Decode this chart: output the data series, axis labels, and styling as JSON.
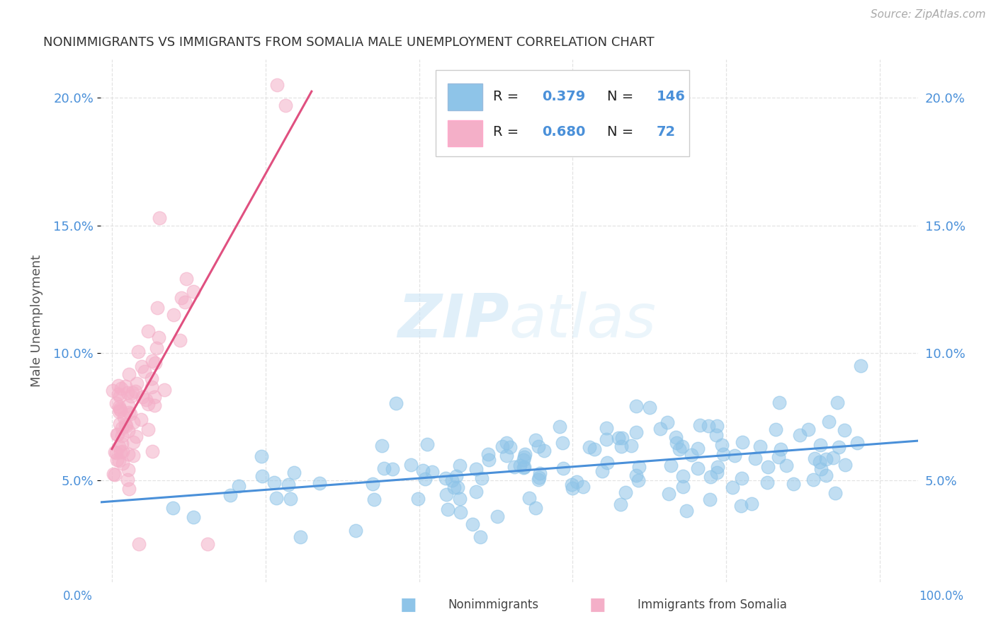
{
  "title": "NONIMMIGRANTS VS IMMIGRANTS FROM SOMALIA MALE UNEMPLOYMENT CORRELATION CHART",
  "source": "Source: ZipAtlas.com",
  "ylabel": "Male Unemployment",
  "blue_color": "#8ec4e8",
  "pink_color": "#f4afc8",
  "blue_line_color": "#4a90d9",
  "pink_line_color": "#e05080",
  "legend_R_blue": "0.379",
  "legend_N_blue": "146",
  "legend_R_pink": "0.680",
  "legend_N_pink": "72",
  "watermark_zip": "ZIP",
  "watermark_atlas": "atlas",
  "background_color": "#ffffff",
  "grid_color": "#cccccc",
  "title_color": "#333333",
  "source_color": "#aaaaaa",
  "axis_label_color": "#4a90d9",
  "ylim": [
    0.01,
    0.215
  ],
  "xlim": [
    -0.015,
    1.05
  ]
}
